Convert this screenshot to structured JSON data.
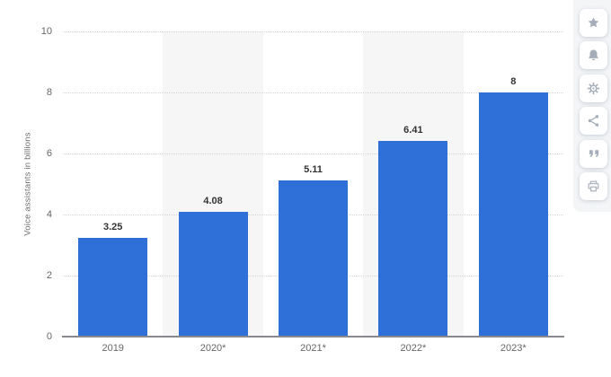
{
  "chart_data": {
    "type": "bar",
    "title": "",
    "ylabel": "Voice assistants in billions",
    "xlabel": "",
    "categories": [
      "2019",
      "2020*",
      "2021*",
      "2022*",
      "2023*"
    ],
    "values": [
      3.25,
      4.08,
      5.11,
      6.41,
      8
    ],
    "value_labels": [
      "3.25",
      "4.08",
      "5.11",
      "6.41",
      "8"
    ],
    "ylim": [
      0,
      10
    ],
    "yticks": [
      0,
      2,
      4,
      6,
      8,
      10
    ],
    "grid": "horizontal-dotted",
    "legend": "none",
    "bar_color": "#2e6fd8",
    "band_color": "#f6f6f7",
    "banded_category_indexes": [
      1,
      3
    ]
  },
  "action_rail": {
    "buttons": [
      {
        "label": "favorite",
        "icon": "star-icon"
      },
      {
        "label": "notifications",
        "icon": "bell-icon"
      },
      {
        "label": "settings",
        "icon": "gear-icon"
      },
      {
        "label": "share",
        "icon": "share-icon"
      },
      {
        "label": "cite",
        "icon": "quote-icon"
      },
      {
        "label": "print",
        "icon": "printer-icon"
      }
    ]
  }
}
